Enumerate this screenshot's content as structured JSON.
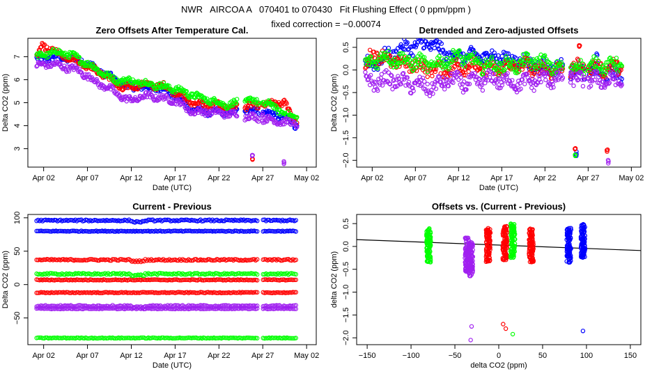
{
  "header": {
    "title": "NWR   AIRCOA A   070401 to 070430   Fit Flushing Effect ( 0 ppm/ppm )",
    "subtitle": "fixed correction = −0.00074"
  },
  "colors": {
    "blue": "#0000ff",
    "red": "#ff0000",
    "green": "#00ff00",
    "purple": "#a020f0",
    "axis": "#000000"
  },
  "chart_data": [
    {
      "id": "p1",
      "type": "scatter",
      "title": "Zero Offsets After Temperature Cal.",
      "xlabel": "Date (UTC)",
      "ylabel": "Delta CO2 (ppm)",
      "xlim": [
        -0.8,
        32.1
      ],
      "ylim": [
        2.2,
        7.8
      ],
      "xtick_pos": [
        1,
        6,
        11,
        16,
        21,
        26,
        31
      ],
      "xtick_labels": [
        "Apr 02",
        "Apr 07",
        "Apr 12",
        "Apr 17",
        "Apr 22",
        "Apr 27",
        "May 02"
      ],
      "ytick_pos": [
        3,
        4,
        5,
        6,
        7
      ],
      "ytick_labels": [
        "3",
        "4",
        "5",
        "6",
        "7"
      ],
      "series": [
        {
          "name": "blue",
          "color": "#0000ff",
          "x": [
            0.5,
            2.5,
            5.5,
            10.5,
            15,
            18,
            20,
            23,
            25,
            27,
            29,
            29.8
          ],
          "y": [
            6.9,
            7.0,
            6.8,
            5.7,
            5.6,
            4.7,
            4.6,
            4.6,
            4.7,
            4.5,
            4.3,
            4.0
          ]
        },
        {
          "name": "red",
          "color": "#ff0000",
          "x": [
            0.3,
            1,
            1.2,
            3,
            5,
            8,
            10,
            12,
            15,
            18,
            20,
            23,
            24.8,
            26,
            28.5,
            29.5
          ],
          "y": [
            7.0,
            7.6,
            7.4,
            7.1,
            6.8,
            6.2,
            5.6,
            5.8,
            5.7,
            5.0,
            4.9,
            4.8,
            2.5,
            4.9,
            5.0,
            4.3
          ]
        },
        {
          "name": "green",
          "color": "#00ff00",
          "x": [
            0.5,
            2,
            4,
            6,
            9,
            12,
            16,
            19,
            22,
            24.5,
            27,
            29
          ],
          "y": [
            7.0,
            7.2,
            7.1,
            6.7,
            6.0,
            5.9,
            5.6,
            5.2,
            4.9,
            5.1,
            4.9,
            4.4
          ]
        },
        {
          "name": "purple",
          "color": "#a020f0",
          "x": [
            0.3,
            1.5,
            3,
            5,
            7,
            9,
            10.5,
            13,
            16,
            18,
            20,
            22.5,
            24.8,
            26,
            28.4,
            29.5
          ],
          "y": [
            6.6,
            6.7,
            6.6,
            6.4,
            5.9,
            5.5,
            5.1,
            5.3,
            5.1,
            4.6,
            4.6,
            4.5,
            2.7,
            4.5,
            2.4,
            4.1
          ]
        }
      ]
    },
    {
      "id": "p2",
      "type": "scatter",
      "title": "Detrended and Zero-adjusted Offsets",
      "xlabel": "Date (UTC)",
      "ylabel": "Delta CO2 (ppm)",
      "xlim": [
        -0.8,
        32.1
      ],
      "ylim": [
        -2.15,
        0.7
      ],
      "xtick_pos": [
        1,
        6,
        11,
        16,
        21,
        26,
        31
      ],
      "xtick_labels": [
        "Apr 02",
        "Apr 07",
        "Apr 12",
        "Apr 17",
        "Apr 22",
        "Apr 27",
        "May 02"
      ],
      "ytick_pos": [
        -2.0,
        -1.5,
        -1.0,
        -0.5,
        0.0,
        0.5
      ],
      "ytick_labels": [
        "−2.0",
        "−1.5",
        "−1.0",
        "−0.5",
        "0.0",
        "0.5"
      ],
      "series": [
        {
          "name": "blue",
          "color": "#0000ff",
          "x": [
            0.5,
            5,
            7.5,
            10,
            15,
            18,
            20,
            24.6,
            27,
            29.6
          ],
          "y": [
            0.1,
            0.5,
            0.6,
            0.3,
            0.3,
            0.2,
            0.1,
            -1.85,
            0.3,
            -0.1
          ]
        },
        {
          "name": "red",
          "color": "#ff0000",
          "x": [
            0.3,
            1,
            3,
            6,
            9,
            12,
            15,
            18,
            21,
            24.5,
            25,
            28.2,
            29.5
          ],
          "y": [
            0.0,
            0.4,
            0.2,
            0.1,
            0.0,
            0.1,
            0.0,
            0.1,
            0.0,
            -1.7,
            0.5,
            -1.8,
            0.05
          ]
        },
        {
          "name": "green",
          "color": "#00ff00",
          "x": [
            0.5,
            2,
            5,
            8,
            11,
            14,
            17,
            20,
            23,
            24.5,
            27
          ],
          "y": [
            0.1,
            0.3,
            0.2,
            0.1,
            0.3,
            0.1,
            0.1,
            0.2,
            0.0,
            -1.9,
            0.1
          ]
        },
        {
          "name": "purple",
          "color": "#a020f0",
          "x": [
            0.2,
            1,
            3,
            5,
            8,
            10,
            12,
            15,
            18,
            21,
            24,
            28.3,
            29.5
          ],
          "y": [
            -0.2,
            -0.3,
            -0.2,
            -0.3,
            -0.4,
            -0.2,
            -0.3,
            -0.2,
            -0.3,
            -0.2,
            -0.1,
            -2.05,
            -0.25
          ]
        }
      ]
    },
    {
      "id": "p3",
      "type": "scatter",
      "title": "Current - Previous",
      "xlabel": "Date (UTC)",
      "ylabel": "Delta CO2 (ppm)",
      "xlim": [
        -0.8,
        32.1
      ],
      "ylim": [
        -90,
        105
      ],
      "xtick_pos": [
        1,
        6,
        11,
        16,
        21,
        26,
        31
      ],
      "xtick_labels": [
        "Apr 02",
        "Apr 07",
        "Apr 12",
        "Apr 17",
        "Apr 22",
        "Apr 27",
        "May 02"
      ],
      "ytick_pos": [
        -50,
        0,
        50,
        100
      ],
      "ytick_labels": [
        "−50",
        "0",
        "50",
        "100"
      ],
      "series": [
        {
          "name": "blue",
          "color": "#0000ff",
          "levels": [
            96,
            80
          ],
          "x": [
            0.5,
            30
          ],
          "y": [
            96,
            96
          ]
        },
        {
          "name": "red",
          "color": "#ff0000",
          "levels": [
            37,
            7,
            -12
          ],
          "x": [
            0.5,
            30
          ],
          "y": [
            7,
            7
          ]
        },
        {
          "name": "green",
          "color": "#00ff00",
          "levels": [
            16,
            -80
          ],
          "x": [
            0.5,
            30
          ],
          "y": [
            16,
            16
          ]
        },
        {
          "name": "purple",
          "color": "#a020f0",
          "levels": [
            -32,
            -36
          ],
          "x": [
            0.5,
            30
          ],
          "y": [
            -32,
            -32
          ]
        }
      ]
    },
    {
      "id": "p4",
      "type": "scatter",
      "title": "Offsets vs. (Current - Previous)",
      "xlabel": "delta CO2 (ppm)",
      "ylabel": "delta CO2 (ppm)",
      "xlim": [
        -162,
        162
      ],
      "ylim": [
        -2.15,
        0.7
      ],
      "xtick_pos": [
        -150,
        -100,
        -50,
        0,
        50,
        100,
        150
      ],
      "xtick_labels": [
        "−150",
        "−100",
        "−50",
        "0",
        "50",
        "100",
        "150"
      ],
      "ytick_pos": [
        -2.0,
        -1.5,
        -1.0,
        -0.5,
        0.0,
        0.5
      ],
      "ytick_labels": [
        "−2.0",
        "−1.5",
        "−1.0",
        "−0.5",
        "0.0",
        "0.5"
      ],
      "fit_line": {
        "slope": -0.00074,
        "intercept": 0.03
      },
      "series": [
        {
          "name": "blue",
          "color": "#0000ff",
          "x": [
            80,
            96,
            96
          ],
          "y": [
            0.0,
            0.1,
            -1.85
          ]
        },
        {
          "name": "red",
          "color": "#ff0000",
          "x": [
            -12,
            7,
            37,
            5,
            8
          ],
          "y": [
            0.0,
            0.05,
            0.0,
            -1.7,
            -1.8
          ]
        },
        {
          "name": "green",
          "color": "#00ff00",
          "x": [
            -80,
            16,
            16
          ],
          "y": [
            0.0,
            0.1,
            -1.92
          ]
        },
        {
          "name": "purple",
          "color": "#a020f0",
          "x": [
            -36,
            -32,
            -31,
            -32
          ],
          "y": [
            -0.2,
            -0.3,
            -1.75,
            -2.05
          ]
        }
      ]
    }
  ]
}
